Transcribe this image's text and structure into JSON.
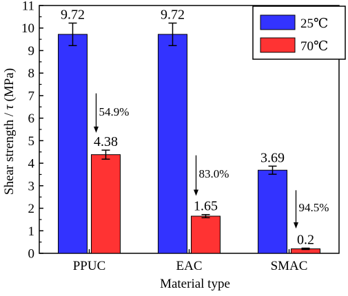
{
  "chart_data": {
    "type": "bar",
    "xlabel": "Material type",
    "ylabel_main": "Shear strength / ",
    "ylabel_symbol": "τ",
    "ylabel_unit": " (MPa)",
    "ylim": [
      0,
      11
    ],
    "yticks": [
      "0",
      "1",
      "2",
      "3",
      "4",
      "5",
      "6",
      "7",
      "8",
      "9",
      "10",
      "11"
    ],
    "categories": [
      "PPUC",
      "EAC",
      "SMAC"
    ],
    "series": [
      {
        "name": "25℃",
        "color": "#3333ff",
        "values": [
          9.72,
          9.72,
          3.69
        ],
        "errors": [
          0.5,
          0.5,
          0.18
        ],
        "labels": [
          "9.72",
          "9.72",
          "3.69"
        ]
      },
      {
        "name": "70℃",
        "color": "#ff3333",
        "values": [
          4.38,
          1.65,
          0.2
        ],
        "errors": [
          0.2,
          0.07,
          0.03
        ],
        "labels": [
          "4.38",
          "1.65",
          "0.2"
        ]
      }
    ],
    "annotations": [
      {
        "category": "PPUC",
        "text": "54.9%",
        "from": 7.1,
        "to": 5.35,
        "label_at": 6.3
      },
      {
        "category": "EAC",
        "text": "83.0%",
        "from": 4.35,
        "to": 2.55,
        "label_at": 3.55
      },
      {
        "category": "SMAC",
        "text": "94.5%",
        "from": 2.8,
        "to": 1.1,
        "label_at": 2.05
      }
    ],
    "legend_position": "top-right",
    "grid": false
  }
}
